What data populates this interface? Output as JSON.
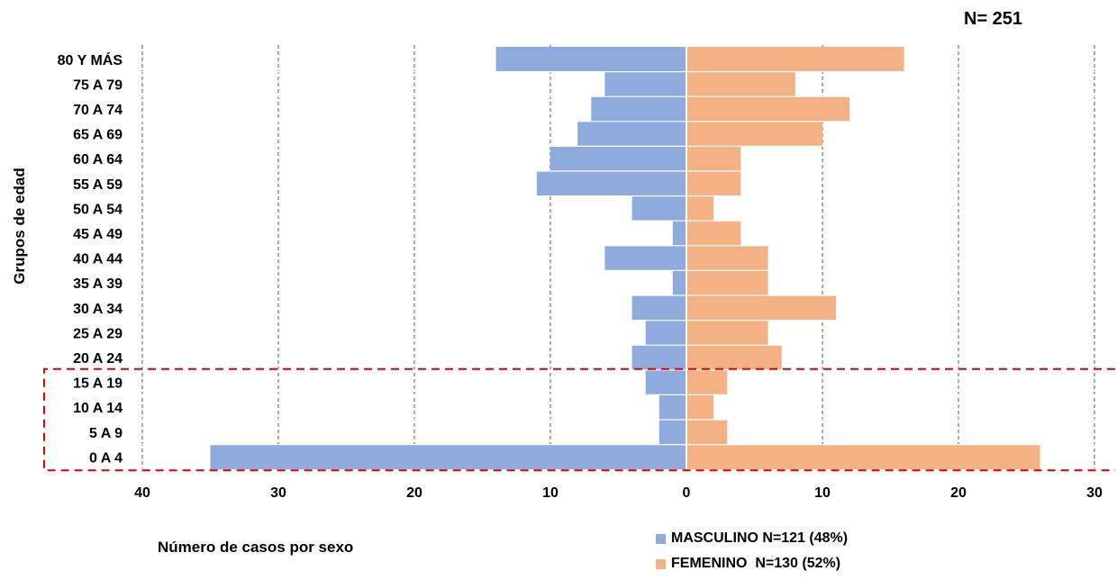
{
  "header": {
    "total_label": "N= 251"
  },
  "chart_data": {
    "type": "bar",
    "orientation": "horizontal",
    "layout": "population-pyramid",
    "ylabel": "Grupos de edad",
    "xlabel": "Número de casos por sexo",
    "categories": [
      "80 Y MÁS",
      "75 A 79",
      "70 A 74",
      "65 A 69",
      "60 A 64",
      "55 A 59",
      "50 A 54",
      "45 A 49",
      "40 A 44",
      "35 A 39",
      "30 A 34",
      "25 A 29",
      "20 A 24",
      "15 A 19",
      "10 A 14",
      "5 A 9",
      "0 A 4"
    ],
    "series": [
      {
        "name": "MASCULINO N=121 (48%)",
        "side": "left",
        "color": "#8faadc",
        "values": [
          14,
          6,
          7,
          8,
          10,
          11,
          4,
          1,
          6,
          1,
          4,
          3,
          4,
          3,
          2,
          2,
          35
        ]
      },
      {
        "name": "FEMENINO  N=130 (52%)",
        "side": "right",
        "color": "#f4b183",
        "values": [
          16,
          8,
          12,
          10,
          4,
          4,
          2,
          4,
          6,
          6,
          11,
          6,
          7,
          3,
          2,
          3,
          26
        ]
      }
    ],
    "x_ticks": [
      "40",
      "30",
      "20",
      "10",
      "0",
      "10",
      "20",
      "30"
    ],
    "xlim_left": 40,
    "xlim_right": 30,
    "grid": "vertical-dashed",
    "legend_position": "bottom-right",
    "highlight": {
      "categories": [
        "15 A 19",
        "10 A 14",
        "5 A 9",
        "0 A 4"
      ],
      "style": "red-dashed-box",
      "color": "#e00000"
    }
  }
}
